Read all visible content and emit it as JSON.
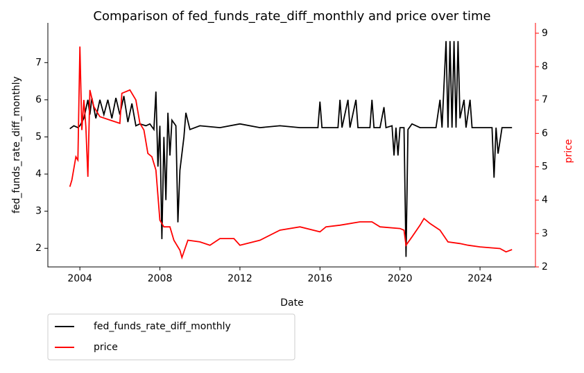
{
  "chart_data": {
    "type": "line",
    "title": "Comparison of fed_funds_rate_diff_monthly and price over time",
    "x_label": "Date",
    "y_label": "fed_funds_rate_diff_monthly",
    "y2_label": "price",
    "y2_color": "#ff0000",
    "xlim": [
      2002.4,
      2026.77
    ],
    "xticks": [
      2004,
      2008,
      2012,
      2016,
      2020,
      2024
    ],
    "ylim": [
      1.5,
      8.07
    ],
    "yticks": [
      2,
      3,
      4,
      5,
      6,
      7
    ],
    "y2lim": [
      2.0,
      9.31
    ],
    "y2ticks": [
      2,
      3,
      4,
      5,
      6,
      7,
      8,
      9
    ],
    "legend": "below-left",
    "series": [
      {
        "name": "fed_funds_rate_diff_monthly",
        "color": "#000000",
        "x": [
          2003.5,
          2003.7,
          2003.9,
          2004.0,
          2004.2,
          2004.4,
          2004.5,
          2004.6,
          2004.8,
          2005.0,
          2005.2,
          2005.4,
          2005.6,
          2005.8,
          2006.0,
          2006.2,
          2006.4,
          2006.6,
          2006.8,
          2007.0,
          2007.3,
          2007.5,
          2007.7,
          2007.8,
          2007.9,
          2008.0,
          2008.1,
          2008.2,
          2008.3,
          2008.4,
          2008.5,
          2008.6,
          2008.8,
          2008.9,
          2009.0,
          2009.2,
          2009.3,
          2009.5,
          2010,
          2011,
          2012,
          2013,
          2014,
          2015,
          2015.9,
          2016.0,
          2016.1,
          2016.9,
          2017.0,
          2017.1,
          2017.4,
          2017.5,
          2017.8,
          2017.9,
          2018.5,
          2018.6,
          2018.7,
          2019.0,
          2019.2,
          2019.3,
          2019.6,
          2019.7,
          2019.8,
          2019.9,
          2020.0,
          2020.2,
          2020.3,
          2020.4,
          2020.6,
          2021.0,
          2021.8,
          2022.0,
          2022.1,
          2022.3,
          2022.4,
          2022.5,
          2022.6,
          2022.7,
          2022.8,
          2022.9,
          2023.0,
          2023.2,
          2023.3,
          2023.5,
          2023.6,
          2024.0,
          2024.6,
          2024.7,
          2024.8,
          2024.9,
          2025.1,
          2025.6
        ],
        "values": [
          5.22,
          5.3,
          5.25,
          5.3,
          5.5,
          6.0,
          5.6,
          6.05,
          5.5,
          6.0,
          5.6,
          6.0,
          5.5,
          6.05,
          5.6,
          6.1,
          5.4,
          5.9,
          5.3,
          5.35,
          5.3,
          5.35,
          5.2,
          6.22,
          4.2,
          5.3,
          2.25,
          5.0,
          3.3,
          5.65,
          4.5,
          5.45,
          5.3,
          2.7,
          4.1,
          5.0,
          5.65,
          5.2,
          5.3,
          5.25,
          5.35,
          5.25,
          5.3,
          5.25,
          5.25,
          5.95,
          5.25,
          5.25,
          6.0,
          5.25,
          6.0,
          5.25,
          6.0,
          5.25,
          5.25,
          6.0,
          5.25,
          5.25,
          5.8,
          5.25,
          5.3,
          4.5,
          5.25,
          4.5,
          5.25,
          5.25,
          1.77,
          5.2,
          5.35,
          5.25,
          5.25,
          6.0,
          5.25,
          7.58,
          5.25,
          7.58,
          5.25,
          7.58,
          5.25,
          7.58,
          5.5,
          6.0,
          5.25,
          6.0,
          5.25,
          5.25,
          5.25,
          3.9,
          5.25,
          4.55,
          5.25,
          5.25
        ]
      },
      {
        "name": "price",
        "color": "#ff0000",
        "axis": "y2",
        "x": [
          2003.5,
          2003.6,
          2003.8,
          2003.9,
          2004.0,
          2004.1,
          2004.2,
          2004.3,
          2004.4,
          2004.5,
          2004.7,
          2005.0,
          2005.5,
          2006.0,
          2006.1,
          2006.5,
          2006.8,
          2007.0,
          2007.2,
          2007.4,
          2007.6,
          2007.8,
          2008.0,
          2008.2,
          2008.5,
          2008.7,
          2009.0,
          2009.1,
          2009.4,
          2010,
          2010.5,
          2011,
          2011.7,
          2012,
          2013,
          2014,
          2015,
          2016,
          2016.3,
          2017,
          2018,
          2018.6,
          2019,
          2020.0,
          2020.2,
          2020.3,
          2020.6,
          2021.0,
          2021.2,
          2021.5,
          2022,
          2022.4,
          2023,
          2023.4,
          2024,
          2025,
          2025.3,
          2025.6
        ],
        "values": [
          4.4,
          4.6,
          5.3,
          5.2,
          8.6,
          6.1,
          7.0,
          6.2,
          4.7,
          7.3,
          6.8,
          6.5,
          6.4,
          6.3,
          7.2,
          7.3,
          7.0,
          6.3,
          6.1,
          5.4,
          5.3,
          4.9,
          3.4,
          3.2,
          3.2,
          2.8,
          2.5,
          2.28,
          2.8,
          2.75,
          2.65,
          2.85,
          2.85,
          2.65,
          2.8,
          3.1,
          3.2,
          3.05,
          3.2,
          3.25,
          3.35,
          3.35,
          3.2,
          3.15,
          3.1,
          2.65,
          2.9,
          3.25,
          3.45,
          3.3,
          3.1,
          2.75,
          2.7,
          2.65,
          2.6,
          2.55,
          2.45,
          2.52
        ]
      }
    ]
  }
}
